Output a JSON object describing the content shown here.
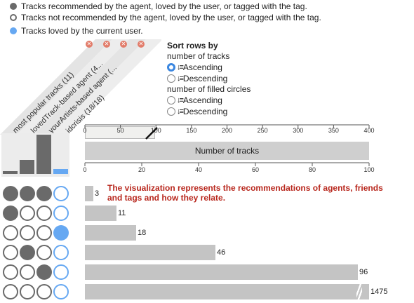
{
  "legend": [
    {
      "label": "Tracks recommended by the agent, loved by the user, or tagged with the tag.",
      "icon": "filled-circle-icon"
    },
    {
      "label": "Tracks not recommended by the agent, loved by the user, or tagged with the tag.",
      "icon": "open-circle-icon"
    },
    {
      "label": "Tracks loved by the current user.",
      "icon": "blue-circle-icon"
    }
  ],
  "columns": [
    {
      "label": "most popular tracks (11)"
    },
    {
      "label": "lovedTrack-based agent (4..."
    },
    {
      "label": "yourArtists-based agent (..."
    },
    {
      "label": "idcrisis (18/18)"
    }
  ],
  "sort": {
    "title": "Sort rows by",
    "group1": "number of tracks",
    "group2": "number of filled circles",
    "ascending": "Ascending",
    "descending": "Descending"
  },
  "mini_hist": {
    "values": [
      0.08,
      0.35,
      1.0,
      0.12
    ],
    "colors": [
      "#6a6a6a",
      "#6a6a6a",
      "#6a6a6a",
      "#66a8f2"
    ]
  },
  "top_axis": {
    "ticks": [
      "0",
      "50",
      "100",
      "150",
      "200",
      "250",
      "300",
      "350",
      "400"
    ],
    "max": 400
  },
  "mid_axis": {
    "ticks": [
      "0",
      "20",
      "40",
      "60",
      "80",
      "100"
    ],
    "max": 100
  },
  "ntracks_label": "Number of tracks",
  "annotation": "The visualization represents the recommendations of agents, friends and tags and how they relate.",
  "rows": [
    {
      "circles": [
        "filled",
        "filled",
        "filled",
        "blue-open"
      ],
      "value": 3,
      "label": "3"
    },
    {
      "circles": [
        "filled",
        "open",
        "open",
        "blue-open"
      ],
      "value": 11,
      "label": "11"
    },
    {
      "circles": [
        "open",
        "open",
        "open",
        "blue-filled"
      ],
      "value": 18,
      "label": "18"
    },
    {
      "circles": [
        "open",
        "filled",
        "open",
        "blue-open"
      ],
      "value": 46,
      "label": "46"
    },
    {
      "circles": [
        "open",
        "open",
        "filled",
        "blue-open"
      ],
      "value": 96,
      "label": "96"
    },
    {
      "circles": [
        "open",
        "open",
        "open",
        "blue-open"
      ],
      "value": 100,
      "label": "1475"
    }
  ]
}
